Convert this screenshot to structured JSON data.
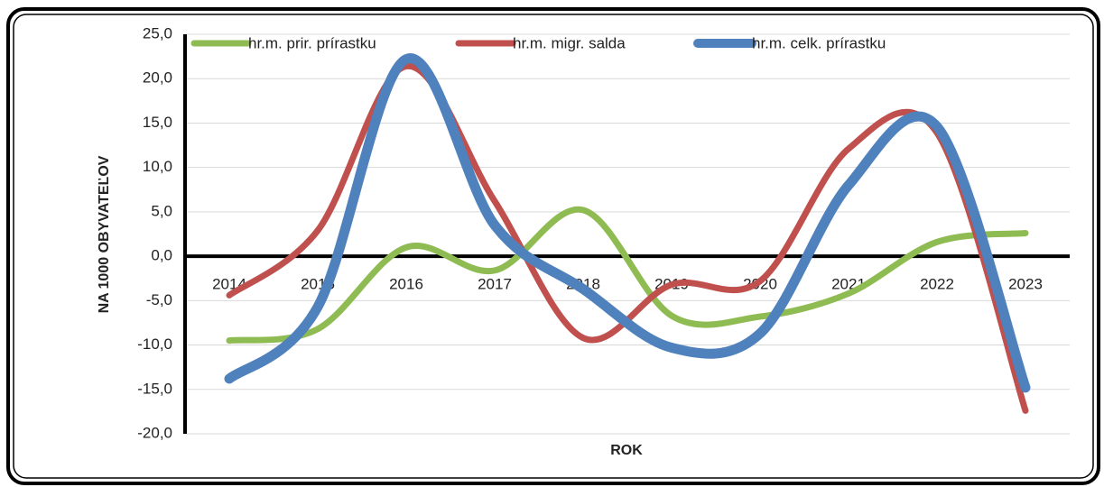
{
  "chart_data": {
    "type": "line",
    "y_label": "NA 1000 OBYVATEĽOV",
    "x_label": "ROK",
    "categories": [
      "2014",
      "2015",
      "2016",
      "2017",
      "2018",
      "2019",
      "2020",
      "2021",
      "2022",
      "2023"
    ],
    "series": [
      {
        "name": "hr.m. prir. prírastku",
        "color": "#8fbc52",
        "values": [
          -9.5,
          -8.2,
          1.0,
          -1.6,
          5.2,
          -6.7,
          -6.8,
          -4.2,
          1.6,
          2.6
        ]
      },
      {
        "name": "hr.m. migr. salda",
        "color": "#c0504d",
        "values": [
          -4.4,
          2.9,
          21.4,
          6.2,
          -9.2,
          -3.2,
          -2.8,
          12.1,
          13.9,
          -17.4
        ]
      },
      {
        "name": "hr.m. celk. prírastku",
        "color": "#4f81bd",
        "values": [
          -13.8,
          -5.7,
          22.2,
          3.5,
          -3.7,
          -10.3,
          -8.7,
          8.0,
          14.6,
          -14.8
        ]
      }
    ],
    "ylim": [
      -20,
      25
    ],
    "yticks": [
      {
        "value": -20,
        "label": "-20,0"
      },
      {
        "value": -15,
        "label": "-15,0"
      },
      {
        "value": -10,
        "label": "-10,0"
      },
      {
        "value": -5,
        "label": "-5,0"
      },
      {
        "value": 0,
        "label": "0,0"
      },
      {
        "value": 5,
        "label": "5,0"
      },
      {
        "value": 10,
        "label": "10,0"
      },
      {
        "value": 15,
        "label": "15,0"
      },
      {
        "value": 20,
        "label": "20,0"
      },
      {
        "value": 25,
        "label": "25,0"
      }
    ],
    "grid": true,
    "legend": "top"
  }
}
